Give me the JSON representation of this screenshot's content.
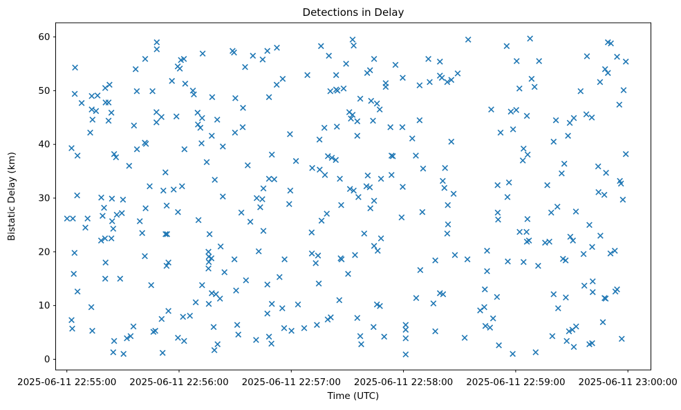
{
  "chart_data": {
    "type": "scatter",
    "title": "Detections in Delay",
    "xlabel": "Time (UTC)",
    "ylabel": "Bistatic Delay (km)",
    "marker": "x",
    "marker_color": "#1f77b4",
    "background_color": "#ffffff",
    "grid": false,
    "legend": "none",
    "x_unit": "seconds after 22:55:00 on 2025-06-11 (UTC)",
    "xlim_seconds": [
      -6,
      312.4
    ],
    "ylim": [
      -2.0,
      62.6
    ],
    "x_ticks": [
      {
        "t": 0,
        "label": "2025-06-11 22:55:00"
      },
      {
        "t": 60,
        "label": "2025-06-11 22:56:00"
      },
      {
        "t": 120,
        "label": "2025-06-11 22:57:00"
      },
      {
        "t": 180,
        "label": "2025-06-11 22:58:00"
      },
      {
        "t": 240,
        "label": "2025-06-11 22:59:00"
      },
      {
        "t": 300,
        "label": "2025-06-11 23:00:00"
      }
    ],
    "y_ticks": [
      0,
      10,
      20,
      30,
      40,
      50,
      60
    ],
    "points": [
      [
        48.1,
        59.0
      ],
      [
        48.1,
        57.7
      ],
      [
        41.9,
        55.9
      ],
      [
        62.6,
        55.9
      ],
      [
        61.0,
        55.7
      ],
      [
        59.3,
        54.5
      ],
      [
        60.4,
        54.1
      ],
      [
        36.8,
        54.0
      ],
      [
        4.4,
        54.3
      ],
      [
        56.2,
        51.8
      ],
      [
        63.3,
        51.3
      ],
      [
        67.4,
        50.0
      ],
      [
        67.9,
        49.3
      ],
      [
        20.5,
        50.5
      ],
      [
        22.8,
        51.1
      ],
      [
        4.2,
        49.4
      ],
      [
        37.4,
        49.9
      ],
      [
        45.8,
        49.9
      ],
      [
        13.3,
        49.0
      ],
      [
        16.4,
        49.1
      ],
      [
        7.9,
        47.7
      ],
      [
        20.7,
        47.8
      ],
      [
        22.3,
        47.8
      ],
      [
        13.3,
        46.5
      ],
      [
        15.6,
        46.2
      ],
      [
        23.8,
        45.9
      ],
      [
        13.7,
        44.6
      ],
      [
        22.3,
        44.4
      ],
      [
        47.9,
        46.0
      ],
      [
        50.6,
        45.1
      ],
      [
        47.9,
        44.1
      ],
      [
        58.6,
        45.2
      ],
      [
        69.9,
        45.9
      ],
      [
        35.9,
        43.5
      ],
      [
        12.5,
        42.2
      ],
      [
        2.5,
        39.3
      ],
      [
        5.7,
        37.9
      ],
      [
        41.7,
        40.3
      ],
      [
        42.3,
        40.1
      ],
      [
        37.5,
        39.1
      ],
      [
        25.3,
        38.2
      ],
      [
        26.3,
        37.6
      ],
      [
        62.9,
        39.1
      ],
      [
        33.3,
        36.0
      ],
      [
        52.7,
        34.8
      ],
      [
        44.3,
        32.2
      ],
      [
        51.6,
        31.4
      ],
      [
        57.1,
        31.6
      ],
      [
        61.6,
        32.2
      ],
      [
        5.5,
        30.5
      ],
      [
        18.4,
        30.1
      ],
      [
        24.1,
        29.9
      ],
      [
        30.0,
        29.7
      ],
      [
        72.6,
        56.9
      ],
      [
        88.6,
        57.4
      ],
      [
        89.4,
        57.1
      ],
      [
        99.5,
        56.5
      ],
      [
        107.2,
        57.4
      ],
      [
        112.3,
        58.0
      ],
      [
        104.7,
        55.8
      ],
      [
        95.3,
        54.4
      ],
      [
        135.9,
        58.3
      ],
      [
        140.1,
        56.5
      ],
      [
        149.3,
        55.0
      ],
      [
        144.0,
        52.9
      ],
      [
        128.6,
        52.9
      ],
      [
        115.4,
        52.2
      ],
      [
        112.2,
        51.1
      ],
      [
        140.9,
        49.9
      ],
      [
        144.0,
        50.2
      ],
      [
        144.7,
        50.0
      ],
      [
        148.0,
        50.4
      ],
      [
        77.7,
        48.8
      ],
      [
        90.1,
        48.6
      ],
      [
        108.1,
        48.8
      ],
      [
        94.2,
        46.8
      ],
      [
        72.3,
        44.9
      ],
      [
        80.4,
        44.6
      ],
      [
        70.1,
        43.7
      ],
      [
        71.4,
        43.1
      ],
      [
        94.0,
        43.2
      ],
      [
        89.9,
        42.2
      ],
      [
        77.5,
        41.6
      ],
      [
        72.0,
        40.2
      ],
      [
        83.4,
        39.6
      ],
      [
        119.3,
        41.9
      ],
      [
        137.7,
        43.1
      ],
      [
        144.4,
        43.3
      ],
      [
        135.1,
        40.9
      ],
      [
        109.6,
        38.1
      ],
      [
        122.5,
        36.9
      ],
      [
        139.6,
        37.8
      ],
      [
        141.7,
        37.5
      ],
      [
        143.8,
        37.1
      ],
      [
        131.2,
        35.6
      ],
      [
        135.2,
        35.3
      ],
      [
        138.0,
        34.3
      ],
      [
        74.8,
        36.7
      ],
      [
        96.7,
        36.1
      ],
      [
        79.1,
        33.4
      ],
      [
        108.1,
        33.6
      ],
      [
        110.9,
        33.5
      ],
      [
        146.0,
        33.6
      ],
      [
        105.1,
        31.8
      ],
      [
        119.5,
        31.4
      ],
      [
        101.5,
        30.0
      ],
      [
        83.4,
        30.3
      ],
      [
        104.5,
        29.8
      ],
      [
        152.8,
        59.5
      ],
      [
        153.4,
        58.4
      ],
      [
        214.6,
        59.5
      ],
      [
        164.3,
        55.9
      ],
      [
        175.7,
        54.8
      ],
      [
        162.1,
        53.8
      ],
      [
        160.6,
        53.3
      ],
      [
        193.3,
        55.9
      ],
      [
        199.5,
        55.4
      ],
      [
        179.6,
        52.4
      ],
      [
        170.5,
        51.4
      ],
      [
        170.5,
        50.7
      ],
      [
        188.6,
        51.0
      ],
      [
        194.0,
        51.6
      ],
      [
        199.5,
        52.8
      ],
      [
        200.5,
        52.4
      ],
      [
        203.4,
        51.6
      ],
      [
        205.6,
        52.0
      ],
      [
        209.0,
        53.2
      ],
      [
        156.9,
        48.5
      ],
      [
        162.7,
        48.1
      ],
      [
        165.8,
        47.6
      ],
      [
        167.3,
        46.5
      ],
      [
        226.9,
        46.5
      ],
      [
        151.0,
        46.0
      ],
      [
        152.8,
        45.5
      ],
      [
        151.9,
        44.8
      ],
      [
        155.3,
        44.3
      ],
      [
        163.7,
        44.4
      ],
      [
        188.6,
        44.5
      ],
      [
        173.0,
        43.2
      ],
      [
        179.4,
        43.2
      ],
      [
        155.3,
        41.6
      ],
      [
        184.7,
        41.1
      ],
      [
        205.6,
        40.5
      ],
      [
        173.6,
        37.9
      ],
      [
        174.3,
        37.8
      ],
      [
        186.6,
        37.9
      ],
      [
        190.5,
        35.5
      ],
      [
        202.2,
        35.6
      ],
      [
        160.9,
        34.2
      ],
      [
        168.0,
        33.6
      ],
      [
        173.6,
        34.3
      ],
      [
        201.0,
        33.2
      ],
      [
        179.6,
        32.1
      ],
      [
        160.2,
        32.2
      ],
      [
        162.0,
        32.0
      ],
      [
        201.9,
        31.9
      ],
      [
        153.4,
        31.4
      ],
      [
        151.4,
        31.7
      ],
      [
        206.8,
        30.8
      ],
      [
        247.7,
        59.7
      ],
      [
        235.2,
        58.3
      ],
      [
        289.3,
        59.0
      ],
      [
        290.9,
        58.8
      ],
      [
        240.5,
        55.5
      ],
      [
        252.5,
        55.5
      ],
      [
        278.1,
        56.4
      ],
      [
        294.2,
        56.3
      ],
      [
        298.9,
        55.4
      ],
      [
        287.8,
        54.0
      ],
      [
        289.3,
        53.3
      ],
      [
        285.1,
        51.6
      ],
      [
        248.5,
        52.2
      ],
      [
        250.1,
        50.7
      ],
      [
        242.0,
        50.4
      ],
      [
        274.7,
        49.9
      ],
      [
        297.7,
        50.1
      ],
      [
        295.4,
        47.4
      ],
      [
        237.4,
        46.1
      ],
      [
        240.3,
        46.4
      ],
      [
        246.0,
        45.3
      ],
      [
        261.5,
        44.5
      ],
      [
        271.1,
        44.9
      ],
      [
        268.9,
        44.0
      ],
      [
        277.8,
        45.6
      ],
      [
        280.7,
        45.0
      ],
      [
        238.6,
        42.8
      ],
      [
        231.9,
        42.2
      ],
      [
        268.0,
        41.6
      ],
      [
        260.3,
        40.5
      ],
      [
        244.2,
        39.2
      ],
      [
        246.4,
        38.1
      ],
      [
        243.8,
        37.0
      ],
      [
        298.9,
        38.2
      ],
      [
        266.0,
        36.4
      ],
      [
        284.1,
        35.9
      ],
      [
        264.6,
        34.6
      ],
      [
        288.3,
        34.7
      ],
      [
        236.4,
        32.9
      ],
      [
        230.3,
        32.4
      ],
      [
        256.9,
        32.4
      ],
      [
        295.7,
        33.2
      ],
      [
        296.3,
        32.7
      ],
      [
        284.3,
        31.1
      ],
      [
        287.4,
        30.6
      ],
      [
        297.3,
        29.7
      ],
      [
        235.6,
        30.2
      ],
      [
        19.9,
        28.2
      ],
      [
        42.1,
        28.1
      ],
      [
        53.4,
        28.6
      ],
      [
        59.4,
        27.4
      ],
      [
        0.1,
        26.2
      ],
      [
        3.2,
        26.2
      ],
      [
        11.1,
        26.2
      ],
      [
        19.1,
        26.7
      ],
      [
        26.7,
        26.9
      ],
      [
        29.4,
        27.2
      ],
      [
        24.2,
        25.7
      ],
      [
        39.0,
        25.7
      ],
      [
        9.9,
        24.5
      ],
      [
        24.8,
        24.3
      ],
      [
        40.3,
        23.5
      ],
      [
        52.8,
        23.3
      ],
      [
        53.6,
        23.3
      ],
      [
        18.3,
        22.1
      ],
      [
        20.4,
        22.5
      ],
      [
        23.8,
        22.5
      ],
      [
        4.1,
        19.8
      ],
      [
        20.7,
        18.0
      ],
      [
        41.7,
        19.2
      ],
      [
        53.3,
        17.4
      ],
      [
        54.3,
        18.0
      ],
      [
        3.7,
        15.9
      ],
      [
        20.5,
        15.0
      ],
      [
        28.5,
        15.0
      ],
      [
        45.1,
        13.8
      ],
      [
        5.7,
        12.6
      ],
      [
        13.1,
        9.7
      ],
      [
        2.5,
        7.3
      ],
      [
        2.9,
        5.7
      ],
      [
        13.6,
        5.3
      ],
      [
        35.6,
        6.1
      ],
      [
        54.3,
        9.0
      ],
      [
        50.7,
        7.5
      ],
      [
        46.3,
        5.1
      ],
      [
        47.3,
        5.3
      ],
      [
        62.1,
        7.9
      ],
      [
        65.8,
        8.1
      ],
      [
        68.9,
        10.6
      ],
      [
        32.1,
        3.9
      ],
      [
        34.1,
        4.3
      ],
      [
        25.3,
        3.4
      ],
      [
        59.4,
        4.0
      ],
      [
        62.7,
        3.4
      ],
      [
        24.8,
        1.3
      ],
      [
        30.3,
        1.0
      ],
      [
        51.2,
        1.2
      ],
      [
        118.9,
        28.9
      ],
      [
        103.4,
        28.3
      ],
      [
        93.3,
        27.3
      ],
      [
        146.7,
        28.7
      ],
      [
        139.0,
        27.1
      ],
      [
        70.4,
        25.9
      ],
      [
        136.2,
        25.8
      ],
      [
        98.1,
        25.6
      ],
      [
        105.1,
        23.9
      ],
      [
        76.3,
        23.3
      ],
      [
        130.9,
        23.6
      ],
      [
        82.2,
        21.0
      ],
      [
        102.6,
        20.1
      ],
      [
        75.7,
        20.0
      ],
      [
        75.9,
        19.1
      ],
      [
        77.3,
        18.8
      ],
      [
        75.9,
        18.1
      ],
      [
        89.6,
        18.6
      ],
      [
        116.4,
        18.6
      ],
      [
        131.0,
        19.7
      ],
      [
        134.3,
        19.3
      ],
      [
        133.1,
        17.9
      ],
      [
        146.4,
        18.8
      ],
      [
        146.9,
        18.6
      ],
      [
        75.7,
        16.9
      ],
      [
        84.3,
        16.2
      ],
      [
        95.8,
        14.7
      ],
      [
        113.7,
        15.3
      ],
      [
        150.4,
        15.9
      ],
      [
        72.3,
        13.8
      ],
      [
        107.2,
        13.9
      ],
      [
        90.5,
        12.8
      ],
      [
        134.7,
        14.1
      ],
      [
        77.5,
        12.3
      ],
      [
        79.7,
        12.1
      ],
      [
        81.9,
        11.3
      ],
      [
        75.9,
        10.3
      ],
      [
        145.7,
        11.0
      ],
      [
        109.6,
        10.3
      ],
      [
        115.2,
        9.5
      ],
      [
        123.6,
        10.2
      ],
      [
        107.2,
        8.5
      ],
      [
        139.5,
        7.4
      ],
      [
        141.1,
        7.8
      ],
      [
        78.5,
        6.0
      ],
      [
        91.1,
        6.4
      ],
      [
        116.2,
        5.8
      ],
      [
        120.1,
        5.3
      ],
      [
        126.9,
        5.8
      ],
      [
        133.7,
        6.4
      ],
      [
        91.7,
        4.6
      ],
      [
        101.2,
        3.6
      ],
      [
        108.1,
        4.2
      ],
      [
        109.4,
        2.9
      ],
      [
        80.6,
        2.8
      ],
      [
        78.9,
        1.7
      ],
      [
        162.3,
        28.1
      ],
      [
        164.3,
        29.5
      ],
      [
        155.9,
        30.2
      ],
      [
        179.0,
        26.4
      ],
      [
        190.1,
        27.4
      ],
      [
        203.7,
        28.7
      ],
      [
        203.8,
        25.1
      ],
      [
        203.4,
        23.4
      ],
      [
        230.4,
        27.3
      ],
      [
        230.6,
        26.0
      ],
      [
        159.0,
        23.4
      ],
      [
        168.0,
        22.5
      ],
      [
        164.3,
        21.1
      ],
      [
        166.2,
        20.2
      ],
      [
        154.1,
        19.4
      ],
      [
        207.5,
        19.4
      ],
      [
        214.2,
        18.6
      ],
      [
        224.7,
        20.2
      ],
      [
        197.0,
        18.4
      ],
      [
        189.0,
        16.6
      ],
      [
        224.7,
        16.4
      ],
      [
        223.5,
        13.0
      ],
      [
        230.0,
        11.6
      ],
      [
        199.5,
        12.3
      ],
      [
        201.2,
        12.1
      ],
      [
        186.8,
        11.4
      ],
      [
        196.0,
        10.4
      ],
      [
        165.8,
        10.2
      ],
      [
        167.4,
        9.9
      ],
      [
        221.0,
        9.1
      ],
      [
        223.2,
        9.7
      ],
      [
        227.9,
        7.6
      ],
      [
        155.3,
        7.7
      ],
      [
        164.0,
        6.0
      ],
      [
        181.2,
        6.4
      ],
      [
        181.2,
        5.5
      ],
      [
        181.2,
        3.9
      ],
      [
        223.8,
        6.2
      ],
      [
        226.3,
        5.9
      ],
      [
        197.0,
        5.2
      ],
      [
        212.7,
        4.0
      ],
      [
        156.9,
        4.3
      ],
      [
        157.4,
        2.8
      ],
      [
        169.7,
        4.2
      ],
      [
        181.2,
        0.9
      ],
      [
        231.0,
        2.6
      ],
      [
        262.3,
        28.4
      ],
      [
        259.0,
        27.3
      ],
      [
        272.2,
        27.5
      ],
      [
        246.3,
        26.1
      ],
      [
        279.4,
        25.0
      ],
      [
        242.1,
        23.7
      ],
      [
        245.8,
        23.7
      ],
      [
        246.0,
        21.9
      ],
      [
        247.1,
        22.1
      ],
      [
        255.7,
        21.7
      ],
      [
        258.0,
        21.9
      ],
      [
        269.2,
        22.8
      ],
      [
        270.6,
        22.1
      ],
      [
        285.3,
        23.0
      ],
      [
        280.9,
        20.9
      ],
      [
        276.3,
        19.6
      ],
      [
        290.7,
        19.7
      ],
      [
        293.0,
        20.2
      ],
      [
        235.8,
        18.2
      ],
      [
        244.2,
        18.1
      ],
      [
        252.0,
        17.4
      ],
      [
        265.3,
        18.7
      ],
      [
        266.7,
        18.4
      ],
      [
        276.7,
        13.7
      ],
      [
        281.2,
        14.5
      ],
      [
        281.2,
        12.5
      ],
      [
        293.3,
        12.6
      ],
      [
        294.2,
        13.0
      ],
      [
        287.5,
        11.4
      ],
      [
        288.1,
        11.3
      ],
      [
        260.3,
        12.1
      ],
      [
        266.8,
        11.5
      ],
      [
        262.7,
        9.5
      ],
      [
        286.6,
        6.9
      ],
      [
        268.5,
        5.2
      ],
      [
        270.3,
        5.5
      ],
      [
        272.3,
        6.1
      ],
      [
        259.6,
        4.3
      ],
      [
        267.3,
        3.4
      ],
      [
        271.1,
        2.3
      ],
      [
        279.4,
        2.8
      ],
      [
        280.9,
        3.0
      ],
      [
        296.7,
        3.8
      ],
      [
        238.4,
        1.0
      ],
      [
        250.7,
        1.3
      ]
    ]
  }
}
